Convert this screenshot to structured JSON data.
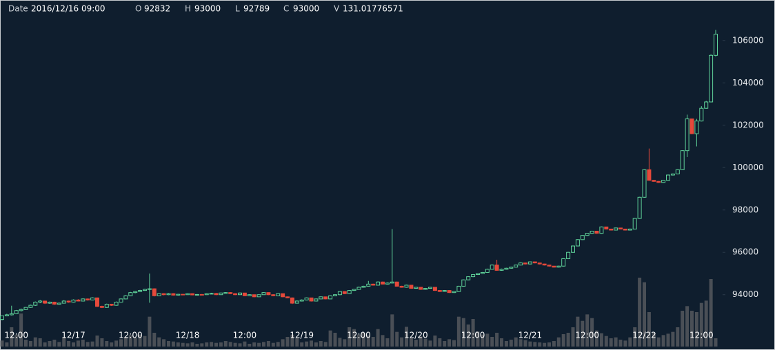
{
  "chart_data": {
    "type": "candlestick",
    "header_labels": [
      "Date",
      "O",
      "H",
      "L",
      "C",
      "V"
    ],
    "date": "2016/12/16 09:00",
    "ylim": [
      92300,
      107750
    ],
    "yticks": [
      94000,
      96000,
      98000,
      100000,
      102000,
      104000,
      106000
    ],
    "vlim": [
      0,
      1500
    ],
    "x_labels": [
      "12:00",
      "12/17",
      "12:00",
      "12/18",
      "12:00",
      "12/19",
      "12:00",
      "12/20",
      "12:00",
      "12/21",
      "12:00",
      "12/22",
      "12:00"
    ],
    "up_color": "#5fd39a",
    "down_color": "#e5493b",
    "volume_color": "#4a4f56",
    "candles": [
      [
        92832,
        93000,
        92789,
        93000,
        131.01776571
      ],
      [
        93000,
        93100,
        92980,
        93050,
        90
      ],
      [
        93050,
        93480,
        93020,
        93100,
        420
      ],
      [
        93100,
        93280,
        93080,
        93250,
        260
      ],
      [
        93250,
        93350,
        93200,
        93300,
        720
      ],
      [
        93300,
        93420,
        93280,
        93400,
        150
      ],
      [
        93400,
        93530,
        93380,
        93500,
        120
      ],
      [
        93500,
        93680,
        93470,
        93650,
        200
      ],
      [
        93650,
        93750,
        93600,
        93700,
        180
      ],
      [
        93700,
        93720,
        93560,
        93600,
        90
      ],
      [
        93600,
        93680,
        93570,
        93650,
        120
      ],
      [
        93650,
        93670,
        93520,
        93550,
        150
      ],
      [
        93550,
        93630,
        93530,
        93600,
        100
      ],
      [
        93600,
        93740,
        93580,
        93700,
        210
      ],
      [
        93700,
        93720,
        93620,
        93650,
        120
      ],
      [
        93650,
        93780,
        93630,
        93750,
        90
      ],
      [
        93750,
        93790,
        93680,
        93700,
        130
      ],
      [
        93700,
        93830,
        93680,
        93800,
        150
      ],
      [
        93800,
        93820,
        93720,
        93750,
        100
      ],
      [
        93750,
        93880,
        93730,
        93850,
        110
      ],
      [
        93850,
        93870,
        93420,
        93450,
        240
      ],
      [
        93450,
        93480,
        93370,
        93400,
        180
      ],
      [
        93400,
        93580,
        93380,
        93550,
        120
      ],
      [
        93550,
        93570,
        93470,
        93500,
        90
      ],
      [
        93500,
        93680,
        93480,
        93650,
        130
      ],
      [
        93650,
        93830,
        93630,
        93800,
        160
      ],
      [
        93800,
        93980,
        93780,
        93950,
        210
      ],
      [
        93950,
        94130,
        93930,
        94100,
        250
      ],
      [
        94100,
        94180,
        94070,
        94150,
        190
      ],
      [
        94150,
        94230,
        94120,
        94200,
        260
      ],
      [
        94200,
        94280,
        94180,
        94250,
        230
      ],
      [
        94250,
        95000,
        93620,
        94280,
        650
      ],
      [
        94280,
        94300,
        93920,
        93950,
        300
      ],
      [
        93950,
        94080,
        93930,
        94050,
        200
      ],
      [
        94050,
        94070,
        93970,
        94000,
        160
      ],
      [
        94000,
        94080,
        93980,
        94050,
        120
      ],
      [
        94050,
        94070,
        93960,
        93980,
        110
      ],
      [
        93980,
        94040,
        93960,
        94020,
        90
      ],
      [
        94020,
        94040,
        93980,
        94000,
        80
      ],
      [
        94000,
        94070,
        93990,
        94050,
        70
      ],
      [
        94050,
        94060,
        93970,
        93990,
        90
      ],
      [
        93990,
        94030,
        93970,
        94010,
        60
      ],
      [
        94010,
        94030,
        93980,
        94000,
        70
      ],
      [
        94000,
        94070,
        93990,
        94050,
        90
      ],
      [
        94050,
        94090,
        94030,
        94060,
        100
      ],
      [
        94060,
        94080,
        93980,
        94000,
        80
      ],
      [
        94000,
        94100,
        93990,
        94080,
        90
      ],
      [
        94080,
        94120,
        94060,
        94100,
        120
      ],
      [
        94100,
        94120,
        94030,
        94050,
        100
      ],
      [
        94050,
        94070,
        93980,
        94000,
        80
      ],
      [
        94000,
        94100,
        93990,
        94080,
        70
      ],
      [
        94080,
        94090,
        93930,
        93950,
        110
      ],
      [
        93950,
        94020,
        93940,
        94000,
        60
      ],
      [
        94000,
        94010,
        93880,
        93900,
        90
      ],
      [
        93900,
        94020,
        93890,
        94000,
        80
      ],
      [
        94000,
        94120,
        93990,
        94100,
        100
      ],
      [
        94100,
        94110,
        93980,
        94000,
        120
      ],
      [
        94000,
        94020,
        93930,
        93950,
        80
      ],
      [
        93950,
        94070,
        93940,
        94050,
        100
      ],
      [
        94050,
        94060,
        93880,
        93900,
        160
      ],
      [
        93900,
        93920,
        93830,
        93850,
        210
      ],
      [
        93850,
        93870,
        93560,
        93600,
        260
      ],
      [
        93600,
        93730,
        93580,
        93700,
        180
      ],
      [
        93700,
        93780,
        93680,
        93750,
        90
      ],
      [
        93750,
        93870,
        93730,
        93850,
        110
      ],
      [
        93850,
        93860,
        93680,
        93700,
        130
      ],
      [
        93700,
        93820,
        93680,
        93800,
        90
      ],
      [
        93800,
        93920,
        93780,
        93900,
        120
      ],
      [
        93900,
        93910,
        93780,
        93800,
        100
      ],
      [
        93800,
        93970,
        93790,
        93950,
        350
      ],
      [
        93950,
        94020,
        93930,
        94000,
        300
      ],
      [
        94000,
        94170,
        93980,
        94150,
        190
      ],
      [
        94150,
        94160,
        94030,
        94050,
        160
      ],
      [
        94050,
        94220,
        94030,
        94200,
        420
      ],
      [
        94200,
        94270,
        94180,
        94250,
        380
      ],
      [
        94250,
        94380,
        94230,
        94350,
        260
      ],
      [
        94350,
        94420,
        94330,
        94400,
        300
      ],
      [
        94400,
        94650,
        94380,
        94500,
        240
      ],
      [
        94500,
        94520,
        94430,
        94450,
        210
      ],
      [
        94450,
        94630,
        94430,
        94600,
        380
      ],
      [
        94600,
        94620,
        94480,
        94500,
        250
      ],
      [
        94500,
        94580,
        94480,
        94550,
        180
      ],
      [
        94550,
        97100,
        94530,
        94600,
        700
      ],
      [
        94600,
        94620,
        94380,
        94400,
        320
      ],
      [
        94400,
        94420,
        94330,
        94350,
        200
      ],
      [
        94350,
        94470,
        94330,
        94450,
        430
      ],
      [
        94450,
        94460,
        94280,
        94300,
        180
      ],
      [
        94300,
        94370,
        94280,
        94350,
        150
      ],
      [
        94350,
        94360,
        94230,
        94250,
        220
      ],
      [
        94250,
        94320,
        94230,
        94300,
        170
      ],
      [
        94300,
        94370,
        94280,
        94350,
        130
      ],
      [
        94350,
        94360,
        94180,
        94200,
        240
      ],
      [
        94200,
        94220,
        94130,
        94150,
        180
      ],
      [
        94150,
        94220,
        94130,
        94200,
        120
      ],
      [
        94200,
        94210,
        94080,
        94100,
        160
      ],
      [
        94100,
        94170,
        94080,
        94150,
        140
      ],
      [
        94150,
        94420,
        94130,
        94400,
        650
      ],
      [
        94400,
        94720,
        94380,
        94700,
        620
      ],
      [
        94700,
        94870,
        94680,
        94850,
        480
      ],
      [
        94850,
        94970,
        94830,
        94950,
        600
      ],
      [
        94950,
        95020,
        94930,
        95000,
        330
      ],
      [
        95000,
        95070,
        94980,
        95050,
        260
      ],
      [
        95050,
        95230,
        95030,
        95200,
        280
      ],
      [
        95200,
        95430,
        95180,
        95400,
        210
      ],
      [
        95400,
        95650,
        95130,
        95150,
        300
      ],
      [
        95150,
        95230,
        95130,
        95200,
        180
      ],
      [
        95200,
        95270,
        95180,
        95250,
        120
      ],
      [
        95250,
        95320,
        95230,
        95300,
        150
      ],
      [
        95300,
        95420,
        95280,
        95400,
        200
      ],
      [
        95400,
        95530,
        95380,
        95500,
        160
      ],
      [
        95500,
        95520,
        95430,
        95450,
        140
      ],
      [
        95450,
        95570,
        95430,
        95550,
        110
      ],
      [
        95550,
        95560,
        95480,
        95500,
        100
      ],
      [
        95500,
        95510,
        95430,
        95450,
        90
      ],
      [
        95450,
        95460,
        95380,
        95400,
        80
      ],
      [
        95400,
        95410,
        95330,
        95350,
        90
      ],
      [
        95350,
        95360,
        95280,
        95300,
        120
      ],
      [
        95300,
        95370,
        95280,
        95350,
        200
      ],
      [
        95350,
        95720,
        95330,
        95700,
        270
      ],
      [
        95700,
        96020,
        95680,
        96000,
        300
      ],
      [
        96000,
        96320,
        95980,
        96300,
        420
      ],
      [
        96300,
        96620,
        96280,
        96600,
        650
      ],
      [
        96600,
        96820,
        96580,
        96800,
        560
      ],
      [
        96800,
        96920,
        96780,
        96900,
        700
      ],
      [
        96900,
        97020,
        96880,
        97000,
        620
      ],
      [
        97000,
        97010,
        96880,
        96900,
        350
      ],
      [
        96900,
        97220,
        96880,
        97200,
        290
      ],
      [
        97200,
        97210,
        97080,
        97100,
        230
      ],
      [
        97100,
        97110,
        97030,
        97050,
        180
      ],
      [
        97050,
        97170,
        97030,
        97150,
        200
      ],
      [
        97150,
        97160,
        97080,
        97100,
        150
      ],
      [
        97100,
        97110,
        97030,
        97050,
        130
      ],
      [
        97050,
        97120,
        97030,
        97100,
        200
      ],
      [
        97100,
        97620,
        97080,
        97600,
        420
      ],
      [
        97600,
        98620,
        97580,
        98600,
        1500
      ],
      [
        98600,
        99920,
        98580,
        99900,
        1400
      ],
      [
        99900,
        100900,
        99380,
        99400,
        750
      ],
      [
        99400,
        99420,
        99330,
        99350,
        300
      ],
      [
        99350,
        99370,
        99280,
        99300,
        200
      ],
      [
        99300,
        99420,
        99280,
        99400,
        250
      ],
      [
        99400,
        99670,
        99380,
        99650,
        280
      ],
      [
        99650,
        99720,
        99630,
        99700,
        320
      ],
      [
        99700,
        99920,
        99680,
        99900,
        420
      ],
      [
        99900,
        100820,
        99880,
        100800,
        780
      ],
      [
        100800,
        102500,
        100500,
        102300,
        880
      ],
      [
        102300,
        102320,
        101580,
        101600,
        780
      ],
      [
        101600,
        102300,
        101000,
        102200,
        750
      ],
      [
        102200,
        102900,
        102180,
        102800,
        950
      ],
      [
        102800,
        103150,
        102780,
        103100,
        1000
      ],
      [
        103100,
        105350,
        103080,
        105300,
        1470
      ],
      [
        105300,
        106500,
        105250,
        106300,
        180
      ]
    ]
  }
}
